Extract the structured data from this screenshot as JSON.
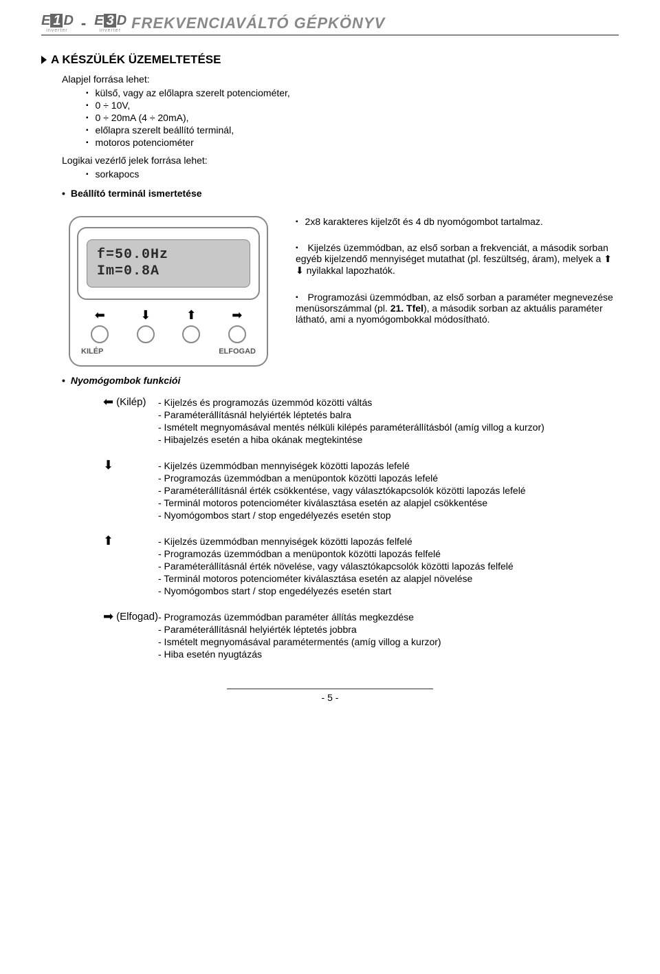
{
  "header": {
    "logo1_prefix": "E",
    "logo1_box": "1",
    "logo1_suffix": "D",
    "logo_sub": "inverter",
    "logo2_prefix": "E",
    "logo2_box": "3",
    "logo2_suffix": "D",
    "sep": "-",
    "title": "FREKVENCIAVÁLTÓ GÉPKÖNYV"
  },
  "section1": {
    "title": "A KÉSZÜLÉK ÜZEMELTETÉSE",
    "intro": "Alapjel forrása lehet:",
    "items": [
      "külső, vagy az előlapra szerelt potenciométer,",
      "0 ÷ 10V,",
      "0 ÷ 20mA (4 ÷ 20mA),",
      "előlapra szerelt beállító terminál,",
      "motoros potenciométer"
    ],
    "intro2": "Logikai vezérlő jelek forrása lehet:",
    "items2": [
      "sorkapocs"
    ],
    "sub_dot": "Beállító terminál ismertetése"
  },
  "terminal": {
    "lcd_line1": "f=50.0Hz",
    "lcd_line2": "Im=0.8A",
    "btn_left_label": "KILÉP",
    "btn_right_label": "ELFOGAD",
    "desc1": "2x8 karakteres kijelzőt és 4 db nyomógombot tartalmaz.",
    "desc2_a": "Kijelzés üzemmódban, az első sorban a frekvenciát, a második sorban egyéb kijelzendő mennyiséget mutathat (pl. feszültség, áram), melyek a ",
    "desc2_b": " nyilakkal lapozhatók.",
    "desc3_a": "Programozási üzemmódban, az első sorban a paraméter megnevezése menüsorszámmal (pl. ",
    "desc3_bold": "21. Tfel",
    "desc3_b": "), a második sorban az aktuális paraméter látható, ami a nyomógombokkal módosítható."
  },
  "functions": {
    "title": "Nyomógombok funkciói",
    "items": [
      {
        "label": "(Kilép)",
        "arrow": "←",
        "lines": [
          "- Kijelzés és programozás üzemmód közötti váltás",
          "- Paraméterállításnál helyiérték léptetés balra",
          "- Ismételt megnyomásával mentés nélküli kilépés paraméterállításból (amíg villog a kurzor)",
          "- Hibajelzés esetén a hiba okának megtekintése"
        ]
      },
      {
        "label": "",
        "arrow": "↓",
        "lines": [
          "- Kijelzés üzemmódban mennyiségek közötti lapozás lefelé",
          "- Programozás üzemmódban a menüpontok közötti lapozás lefelé",
          "- Paraméterállításnál érték csökkentése, vagy választókapcsolók közötti lapozás lefelé",
          "- Terminál motoros potenciométer kiválasztása esetén az alapjel csökkentése",
          "- Nyomógombos start / stop engedélyezés esetén stop"
        ]
      },
      {
        "label": "",
        "arrow": "↑",
        "lines": [
          "- Kijelzés üzemmódban mennyiségek közötti lapozás felfelé",
          "- Programozás üzemmódban a menüpontok közötti lapozás felfelé",
          "- Paraméterállításnál érték növelése, vagy választókapcsolók közötti lapozás felfelé",
          "- Terminál motoros potenciométer kiválasztása esetén az alapjel növelése",
          "- Nyomógombos start / stop engedélyezés esetén start"
        ]
      },
      {
        "label": "(Elfogad)",
        "arrow": "→",
        "lines": [
          "- Programozás üzemmódban paraméter állítás megkezdése",
          "- Paraméterállításnál helyiérték léptetés jobbra",
          "- Ismételt megnyomásával paramétermentés (amíg villog a kurzor)",
          "- Hiba esetén nyugtázás"
        ]
      }
    ]
  },
  "footer": {
    "page": "- 5 -"
  }
}
